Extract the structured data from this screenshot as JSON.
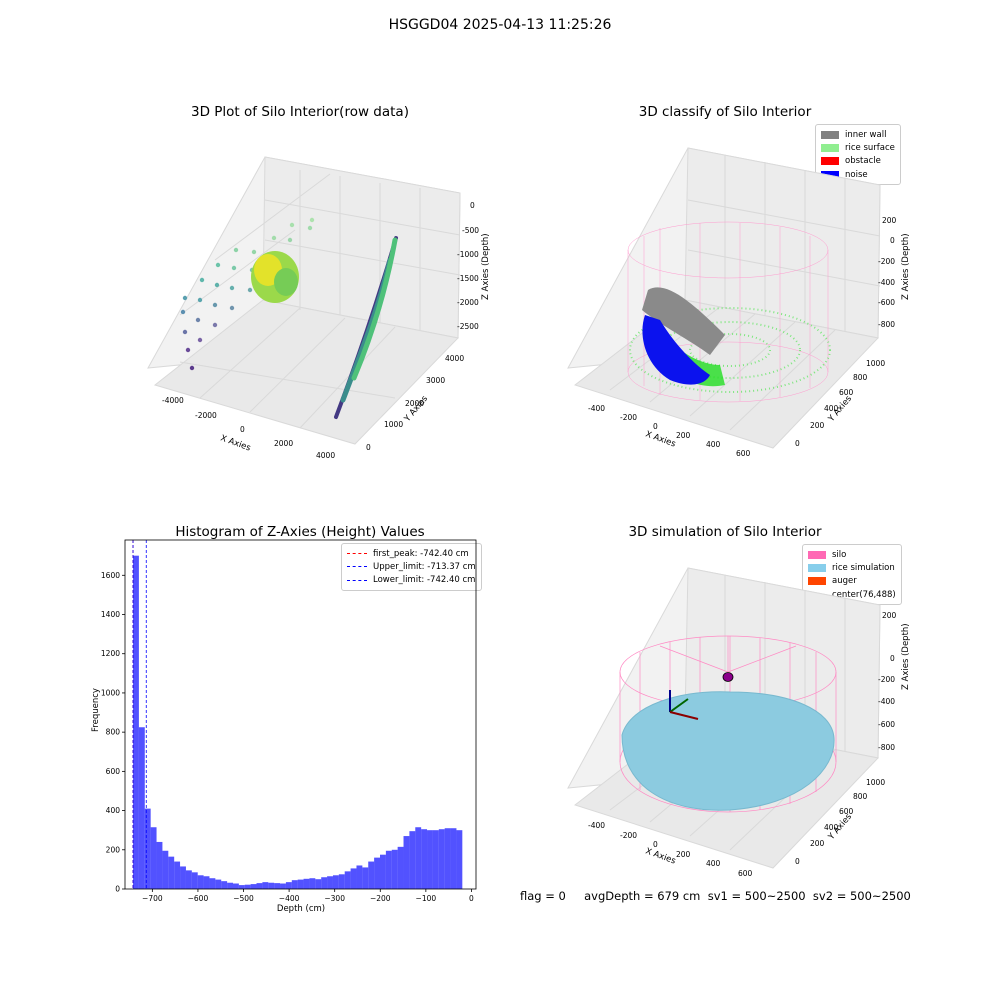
{
  "suptitle": "HSGGD04 2025-04-13 11:25:26",
  "panels": {
    "raw": {
      "title": "3D Plot of Silo Interior(row data)",
      "xlabel": "X Axies",
      "ylabel": "Y Axies",
      "zlabel": "Z Axies (Depth)",
      "xticks": [
        "-4000",
        "-2000",
        "0",
        "2000",
        "4000"
      ],
      "yticks": [
        "0",
        "1000",
        "2000",
        "3000",
        "4000"
      ],
      "zticks": [
        "0",
        "-500",
        "-1000",
        "-1500",
        "-2000",
        "-2500"
      ]
    },
    "classify": {
      "title": "3D classify of Silo Interior",
      "xlabel": "X Axies",
      "ylabel": "Y Axies",
      "zlabel": "Z Axies (Depth)",
      "xticks": [
        "-400",
        "-200",
        "0",
        "200",
        "400",
        "600"
      ],
      "yticks": [
        "0",
        "200",
        "400",
        "600",
        "800",
        "1000"
      ],
      "zticks": [
        "200",
        "0",
        "-200",
        "-400",
        "-600",
        "-800"
      ],
      "legend": [
        {
          "label": "inner wall",
          "color": "#808080"
        },
        {
          "label": "rice surface",
          "color": "#90ee90"
        },
        {
          "label": "obstacle",
          "color": "#ff0000"
        },
        {
          "label": "noise",
          "color": "#0000ff"
        }
      ]
    },
    "histogram": {
      "title": "Histogram of Z-Axies (Height) Values",
      "legend": [
        {
          "label": "first_peak: -742.40 cm",
          "color": "#ff0000"
        },
        {
          "label": "Upper_limit: -713.37 cm",
          "color": "#0000ff"
        },
        {
          "label": "Lower_limit: -742.40 cm",
          "color": "#0000ff"
        }
      ]
    },
    "simulation": {
      "title": "3D simulation of Silo Interior",
      "xlabel": "X Axies",
      "ylabel": "Y Axies",
      "zlabel": "Z Axies (Depth)",
      "xticks": [
        "-400",
        "-200",
        "0",
        "200",
        "400",
        "600"
      ],
      "yticks": [
        "0",
        "200",
        "400",
        "600",
        "800",
        "1000"
      ],
      "zticks": [
        "200",
        "0",
        "-200",
        "-400",
        "-600",
        "-800"
      ],
      "legend": [
        {
          "label": "silo",
          "color": "#ff69b4"
        },
        {
          "label": "rice simulation",
          "color": "#87ceeb"
        },
        {
          "label": "auger",
          "color": "#ff4500"
        },
        {
          "label": "center(76,488)",
          "color": ""
        }
      ]
    }
  },
  "status": "flag = 0     avgDepth = 679 cm  sv1 = 500~2500  sv2 = 500~2500",
  "chart_data": {
    "type": "bar",
    "title": "Histogram of Z-Axies (Height) Values",
    "xlabel": "Depth (cm)",
    "ylabel": "Frequency",
    "xlim": [
      -760,
      10
    ],
    "ylim": [
      0,
      1780
    ],
    "xticks": [
      -700,
      -600,
      -500,
      -400,
      -300,
      -200,
      -100,
      0
    ],
    "yticks": [
      0,
      200,
      400,
      600,
      800,
      1000,
      1200,
      1400,
      1600
    ],
    "bar_color": "#0000ff",
    "bin_width": 12.9,
    "bins_start": [
      -742.4,
      -729.5,
      -716.6,
      -703.7,
      -690.8,
      -677.9,
      -665.0,
      -652.1,
      -639.2,
      -626.3,
      -613.4,
      -600.5,
      -587.6,
      -574.7,
      -561.8,
      -548.9,
      -536.0,
      -523.1,
      -510.2,
      -497.3,
      -484.4,
      -471.5,
      -458.6,
      -445.7,
      -432.8,
      -419.9,
      -407.0,
      -394.1,
      -381.2,
      -368.3,
      -355.4,
      -342.5,
      -329.6,
      -316.7,
      -303.8,
      -290.9,
      -278.0,
      -265.1,
      -252.2,
      -239.3,
      -226.4,
      -213.5,
      -200.6,
      -187.7,
      -174.8,
      -161.9,
      -149.0,
      -136.1,
      -123.2,
      -110.3,
      -97.4,
      -84.5,
      -71.6,
      -58.7,
      -45.8,
      -32.9
    ],
    "values": [
      1700,
      825,
      410,
      315,
      240,
      195,
      165,
      140,
      115,
      95,
      85,
      70,
      65,
      55,
      48,
      40,
      32,
      28,
      20,
      22,
      25,
      30,
      35,
      32,
      30,
      28,
      35,
      45,
      48,
      52,
      55,
      50,
      60,
      65,
      70,
      75,
      90,
      105,
      120,
      110,
      140,
      160,
      175,
      195,
      200,
      215,
      270,
      295,
      315,
      305,
      300,
      300,
      305,
      310,
      310,
      300
    ],
    "vlines": [
      {
        "x": -742.4,
        "color": "#ff0000",
        "label": "first_peak: -742.40 cm"
      },
      {
        "x": -713.37,
        "color": "#0000ff",
        "label": "Upper_limit: -713.37 cm"
      },
      {
        "x": -742.4,
        "color": "#0000ff",
        "label": "Lower_limit: -742.40 cm"
      }
    ]
  }
}
